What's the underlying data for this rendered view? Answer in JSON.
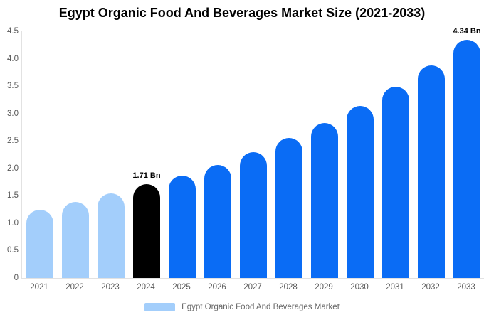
{
  "header": {
    "title": "Egypt Organic Food And Beverages Market Size (2021-2033)"
  },
  "chart_data": {
    "type": "bar",
    "title": "Egypt Organic Food And Beverages Market Size (2021-2033)",
    "categories": [
      "2021",
      "2022",
      "2023",
      "2024",
      "2025",
      "2026",
      "2027",
      "2028",
      "2029",
      "2030",
      "2031",
      "2032",
      "2033"
    ],
    "values": [
      1.25,
      1.39,
      1.54,
      1.71,
      1.87,
      2.06,
      2.29,
      2.55,
      2.83,
      3.14,
      3.49,
      3.88,
      4.34
    ],
    "unit": "Bn",
    "xlabel": "",
    "ylabel": "",
    "ylim": [
      0,
      4.5
    ],
    "y_tick_labels": [
      "4.5",
      "4.0",
      "3.5",
      "3.0",
      "2.5",
      "2.0",
      "1.5",
      "1.0",
      "0.5",
      "0"
    ],
    "grid": false,
    "legend_position": "bottom",
    "bar_value_labels": [
      {
        "category": "2024",
        "text": "1.71 Bn"
      },
      {
        "category": "2033",
        "text": "4.34 Bn"
      }
    ],
    "segment_colors": {
      "historical": "#a3cefb",
      "base_year": "#000000",
      "forecast": "#0a6cf5"
    },
    "category_segments": [
      "historical",
      "historical",
      "historical",
      "base_year",
      "forecast",
      "forecast",
      "forecast",
      "forecast",
      "forecast",
      "forecast",
      "forecast",
      "forecast",
      "forecast"
    ]
  },
  "legend": {
    "label": "Egypt Organic Food And Beverages Market",
    "swatch_color": "#a3cefb"
  },
  "colors": {
    "background": "#ffffff",
    "axis_line": "#e2e2e2",
    "axis_text": "#595959",
    "title_text": "#000000",
    "legend_text": "#666666"
  }
}
